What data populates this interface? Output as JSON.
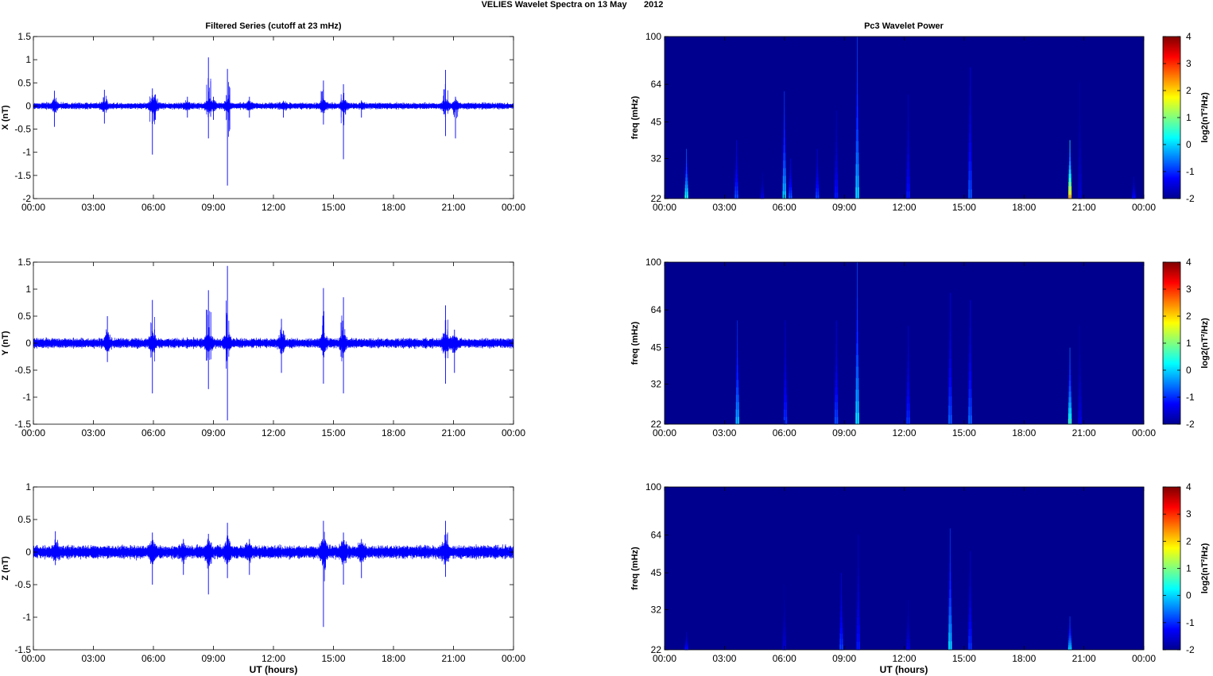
{
  "figure": {
    "title": "VELIES Wavelet Spectra on 13 May       2012",
    "left_title": "Filtered Series (cutoff at 23 mHz)",
    "right_title": "Pc3 Wavelet Power",
    "x_axis_label": "UT (hours)",
    "colors": {
      "trace": "#0000ff",
      "background": "#00008f"
    }
  },
  "chart_data": [
    {
      "type": "line",
      "name": "filtered-x",
      "ylabel": "X (nT)",
      "xlim": [
        0,
        24
      ],
      "ylim": [
        -2,
        1.5
      ],
      "xticks": [
        0,
        3,
        6,
        9,
        12,
        15,
        18,
        21,
        24
      ],
      "xtick_labels": [
        "00:00",
        "03:00",
        "06:00",
        "09:00",
        "12:00",
        "15:00",
        "18:00",
        "21:00",
        "00:00"
      ],
      "yticks": [
        -2,
        -1.5,
        -1,
        -0.5,
        0,
        0.5,
        1,
        1.5
      ],
      "ytick_labels": [
        "-2",
        "-1.5",
        "-1",
        "-0.5",
        "0",
        "0.5",
        "1",
        "1.5"
      ],
      "noise_amplitude": 0.07,
      "spikes": [
        {
          "t": 1.05,
          "hi": 0.33,
          "lo": -0.45
        },
        {
          "t": 3.55,
          "hi": 0.35,
          "lo": -0.38
        },
        {
          "t": 5.95,
          "hi": 0.38,
          "lo": -1.05
        },
        {
          "t": 6.1,
          "hi": 0.25,
          "lo": -0.3
        },
        {
          "t": 7.7,
          "hi": 0.2,
          "lo": -0.25
        },
        {
          "t": 8.75,
          "hi": 1.05,
          "lo": -0.7
        },
        {
          "t": 9.0,
          "hi": 0.2,
          "lo": -0.3
        },
        {
          "t": 9.7,
          "hi": 0.8,
          "lo": -1.72
        },
        {
          "t": 10.8,
          "hi": 0.2,
          "lo": -0.25
        },
        {
          "t": 12.5,
          "hi": 0.1,
          "lo": -0.25
        },
        {
          "t": 14.5,
          "hi": 0.55,
          "lo": -0.4
        },
        {
          "t": 15.5,
          "hi": 0.47,
          "lo": -1.15
        },
        {
          "t": 16.4,
          "hi": 0.12,
          "lo": -0.25
        },
        {
          "t": 20.6,
          "hi": 0.78,
          "lo": -0.65
        },
        {
          "t": 21.1,
          "hi": 0.2,
          "lo": -0.7
        }
      ]
    },
    {
      "type": "line",
      "name": "filtered-y",
      "ylabel": "Y (nT)",
      "xlim": [
        0,
        24
      ],
      "ylim": [
        -1.5,
        1.5
      ],
      "xticks": [
        0,
        3,
        6,
        9,
        12,
        15,
        18,
        21,
        24
      ],
      "xtick_labels": [
        "00:00",
        "03:00",
        "06:00",
        "09:00",
        "12:00",
        "15:00",
        "18:00",
        "21:00",
        "00:00"
      ],
      "yticks": [
        -1.5,
        -1,
        -0.5,
        0,
        0.5,
        1,
        1.5
      ],
      "ytick_labels": [
        "-1.5",
        "-1",
        "-0.5",
        "0",
        "0.5",
        "1",
        "1.5"
      ],
      "noise_amplitude": 0.09,
      "spikes": [
        {
          "t": 3.7,
          "hi": 0.5,
          "lo": -0.35
        },
        {
          "t": 5.95,
          "hi": 0.8,
          "lo": -0.93
        },
        {
          "t": 8.75,
          "hi": 0.98,
          "lo": -0.85
        },
        {
          "t": 9.7,
          "hi": 1.43,
          "lo": -1.43
        },
        {
          "t": 12.4,
          "hi": 0.45,
          "lo": -0.55
        },
        {
          "t": 14.5,
          "hi": 1.02,
          "lo": -0.75
        },
        {
          "t": 15.5,
          "hi": 0.85,
          "lo": -0.93
        },
        {
          "t": 20.6,
          "hi": 0.7,
          "lo": -0.75
        },
        {
          "t": 21.05,
          "hi": 0.25,
          "lo": -0.55
        }
      ]
    },
    {
      "type": "line",
      "name": "filtered-z",
      "ylabel": "Z (nT)",
      "xlim": [
        0,
        24
      ],
      "ylim": [
        -1.5,
        1
      ],
      "xticks": [
        0,
        3,
        6,
        9,
        12,
        15,
        18,
        21,
        24
      ],
      "xtick_labels": [
        "00:00",
        "03:00",
        "06:00",
        "09:00",
        "12:00",
        "15:00",
        "18:00",
        "21:00",
        "00:00"
      ],
      "yticks": [
        -1.5,
        -1,
        -0.5,
        0,
        0.5,
        1
      ],
      "ytick_labels": [
        "-1.5",
        "-1",
        "-0.5",
        "0",
        "0.5",
        "1"
      ],
      "noise_amplitude": 0.1,
      "spikes": [
        {
          "t": 1.1,
          "hi": 0.32,
          "lo": -0.2
        },
        {
          "t": 5.95,
          "hi": 0.3,
          "lo": -0.5
        },
        {
          "t": 7.5,
          "hi": 0.2,
          "lo": -0.35
        },
        {
          "t": 8.75,
          "hi": 0.28,
          "lo": -0.65
        },
        {
          "t": 9.7,
          "hi": 0.45,
          "lo": -0.4
        },
        {
          "t": 10.8,
          "hi": 0.2,
          "lo": -0.35
        },
        {
          "t": 14.5,
          "hi": 0.48,
          "lo": -1.15
        },
        {
          "t": 15.5,
          "hi": 0.3,
          "lo": -0.5
        },
        {
          "t": 16.4,
          "hi": 0.2,
          "lo": -0.4
        },
        {
          "t": 20.6,
          "hi": 0.48,
          "lo": -0.38
        }
      ]
    },
    {
      "type": "heatmap",
      "name": "wavelet-power-x",
      "ylabel": "freq (mHz)",
      "xlim": [
        0,
        24
      ],
      "ylim": [
        22,
        100
      ],
      "y_scale": "log",
      "xticks": [
        0,
        3,
        6,
        9,
        12,
        15,
        18,
        21,
        24
      ],
      "xtick_labels": [
        "00:00",
        "03:00",
        "06:00",
        "09:00",
        "12:00",
        "15:00",
        "18:00",
        "21:00",
        "00:00"
      ],
      "yticks": [
        22,
        32,
        45,
        64,
        100
      ],
      "ytick_labels": [
        "22",
        "32",
        "45",
        "64",
        "100"
      ],
      "colorbar": {
        "label": "log2(nT²/Hz)",
        "range": [
          -2,
          4
        ],
        "ticks": [
          "4",
          "3",
          "2",
          "1",
          "0",
          "-1",
          "-2"
        ]
      },
      "events": [
        {
          "t": 1.1,
          "fmax": 35,
          "peak": 0.8
        },
        {
          "t": 3.6,
          "fmax": 38,
          "peak": -0.6
        },
        {
          "t": 4.9,
          "fmax": 28,
          "peak": -1.3
        },
        {
          "t": 6.0,
          "fmax": 60,
          "peak": 0.3
        },
        {
          "t": 6.3,
          "fmax": 32,
          "peak": -0.5
        },
        {
          "t": 7.65,
          "fmax": 35,
          "peak": -0.7
        },
        {
          "t": 8.6,
          "fmax": 50,
          "peak": -1.0
        },
        {
          "t": 9.65,
          "fmax": 100,
          "peak": 0.4
        },
        {
          "t": 12.2,
          "fmax": 58,
          "peak": -1.0
        },
        {
          "t": 15.3,
          "fmax": 75,
          "peak": -0.5
        },
        {
          "t": 20.3,
          "fmax": 38,
          "peak": 3.0
        },
        {
          "t": 20.8,
          "fmax": 65,
          "peak": -1.4
        },
        {
          "t": 23.5,
          "fmax": 27,
          "peak": -1.0
        }
      ]
    },
    {
      "type": "heatmap",
      "name": "wavelet-power-y",
      "ylabel": "freq (mHz)",
      "xlim": [
        0,
        24
      ],
      "ylim": [
        22,
        100
      ],
      "y_scale": "log",
      "xticks": [
        0,
        3,
        6,
        9,
        12,
        15,
        18,
        21,
        24
      ],
      "xtick_labels": [
        "00:00",
        "03:00",
        "06:00",
        "09:00",
        "12:00",
        "15:00",
        "18:00",
        "21:00",
        "00:00"
      ],
      "yticks": [
        22,
        32,
        45,
        64,
        100
      ],
      "ytick_labels": [
        "22",
        "32",
        "45",
        "64",
        "100"
      ],
      "colorbar": {
        "label": "log2(nT²/Hz)",
        "range": [
          -2,
          4
        ],
        "ticks": [
          "4",
          "3",
          "2",
          "1",
          "0",
          "-1",
          "-2"
        ]
      },
      "events": [
        {
          "t": 3.65,
          "fmax": 58,
          "peak": 0.2
        },
        {
          "t": 6.05,
          "fmax": 58,
          "peak": -0.8
        },
        {
          "t": 8.6,
          "fmax": 58,
          "peak": -0.6
        },
        {
          "t": 9.65,
          "fmax": 100,
          "peak": 0.5
        },
        {
          "t": 12.2,
          "fmax": 55,
          "peak": -0.8
        },
        {
          "t": 14.3,
          "fmax": 75,
          "peak": -0.5
        },
        {
          "t": 15.3,
          "fmax": 70,
          "peak": -0.4
        },
        {
          "t": 20.3,
          "fmax": 45,
          "peak": 1.0
        },
        {
          "t": 20.8,
          "fmax": 55,
          "peak": -1.3
        }
      ]
    },
    {
      "type": "heatmap",
      "name": "wavelet-power-z",
      "ylabel": "freq (mHz)",
      "xlim": [
        0,
        24
      ],
      "ylim": [
        22,
        100
      ],
      "y_scale": "log",
      "xticks": [
        0,
        3,
        6,
        9,
        12,
        15,
        18,
        21,
        24
      ],
      "xtick_labels": [
        "00:00",
        "03:00",
        "06:00",
        "09:00",
        "12:00",
        "15:00",
        "18:00",
        "21:00",
        "00:00"
      ],
      "yticks": [
        22,
        32,
        45,
        64,
        100
      ],
      "ytick_labels": [
        "22",
        "32",
        "45",
        "64",
        "100"
      ],
      "colorbar": {
        "label": "log2(nT²/Hz)",
        "range": [
          -2,
          4
        ],
        "ticks": [
          "4",
          "3",
          "2",
          "1",
          "0",
          "-1",
          "-2"
        ]
      },
      "events": [
        {
          "t": 1.1,
          "fmax": 26,
          "peak": -1.0
        },
        {
          "t": 6.0,
          "fmax": 40,
          "peak": -1.4
        },
        {
          "t": 8.85,
          "fmax": 45,
          "peak": -0.7
        },
        {
          "t": 9.7,
          "fmax": 64,
          "peak": -1.0
        },
        {
          "t": 12.2,
          "fmax": 35,
          "peak": -1.3
        },
        {
          "t": 14.3,
          "fmax": 68,
          "peak": 0.4
        },
        {
          "t": 15.3,
          "fmax": 55,
          "peak": -0.8
        },
        {
          "t": 20.3,
          "fmax": 30,
          "peak": 0.4
        }
      ]
    }
  ]
}
